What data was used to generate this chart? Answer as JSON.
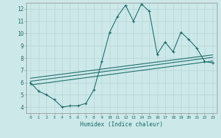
{
  "xlabel": "Humidex (Indice chaleur)",
  "ylabel": "",
  "background_color": "#cce8e8",
  "grid_color": "#b8d8d8",
  "line_color": "#1a6b6b",
  "xlim": [
    -0.5,
    23.5
  ],
  "ylim": [
    3.5,
    12.5
  ],
  "xticks": [
    0,
    1,
    2,
    3,
    4,
    5,
    6,
    7,
    8,
    9,
    10,
    11,
    12,
    13,
    14,
    15,
    16,
    17,
    18,
    19,
    20,
    21,
    22,
    23
  ],
  "yticks": [
    4,
    5,
    6,
    7,
    8,
    9,
    10,
    11,
    12
  ],
  "main_x": [
    0,
    1,
    2,
    3,
    4,
    5,
    6,
    7,
    8,
    9,
    10,
    11,
    12,
    13,
    14,
    15,
    16,
    17,
    18,
    19,
    20,
    21,
    22,
    23
  ],
  "main_y": [
    6.0,
    5.3,
    5.0,
    4.6,
    4.0,
    4.1,
    4.1,
    4.3,
    5.4,
    7.7,
    10.1,
    11.4,
    12.3,
    11.0,
    12.4,
    11.8,
    8.3,
    9.3,
    8.5,
    10.1,
    9.5,
    8.8,
    7.7,
    7.6
  ],
  "line1_x": [
    0,
    23
  ],
  "line1_y": [
    6.1,
    8.05
  ],
  "line2_x": [
    0,
    23
  ],
  "line2_y": [
    6.35,
    8.25
  ],
  "line3_x": [
    0,
    23
  ],
  "line3_y": [
    5.8,
    7.75
  ]
}
